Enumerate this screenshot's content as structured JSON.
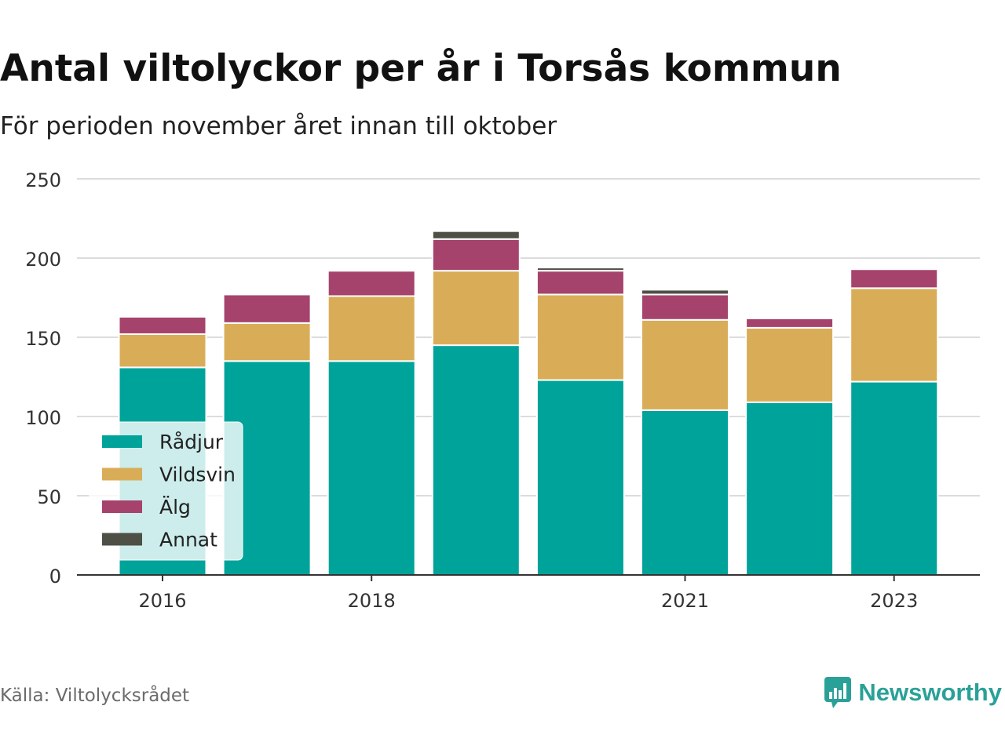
{
  "title": "Antal viltolyckor per år i Torsås kommun",
  "subtitle": "För perioden november året innan till oktober",
  "source": "Källa: Viltolycksrådet",
  "brand": {
    "name": "Newsworthy",
    "icon": "newsworthy-logo-icon",
    "color": "#2aa198"
  },
  "chart_data": {
    "type": "bar",
    "stacked": true,
    "categories": [
      "2016",
      "2017",
      "2018",
      "2019",
      "2020",
      "2021",
      "2022",
      "2023"
    ],
    "x_tick_labels": [
      "2016",
      "",
      "2018",
      "",
      "",
      "2021",
      "",
      "2023"
    ],
    "series": [
      {
        "name": "Rådjur",
        "color": "#00a39a",
        "values": [
          131,
          135,
          135,
          145,
          123,
          104,
          109,
          122
        ]
      },
      {
        "name": "Vildsvin",
        "color": "#d9ad58",
        "values": [
          21,
          24,
          41,
          47,
          54,
          57,
          47,
          59
        ]
      },
      {
        "name": "Älg",
        "color": "#a5436c",
        "values": [
          11,
          18,
          16,
          20,
          15,
          16,
          6,
          12
        ]
      },
      {
        "name": "Annat",
        "color": "#4e4f45",
        "values": [
          1,
          0,
          1,
          5,
          2,
          3,
          1,
          1
        ]
      }
    ],
    "ylim": [
      0,
      250
    ],
    "yticks": [
      0,
      50,
      100,
      150,
      200,
      250
    ],
    "grid": true,
    "legend_position": "bottom-left"
  }
}
